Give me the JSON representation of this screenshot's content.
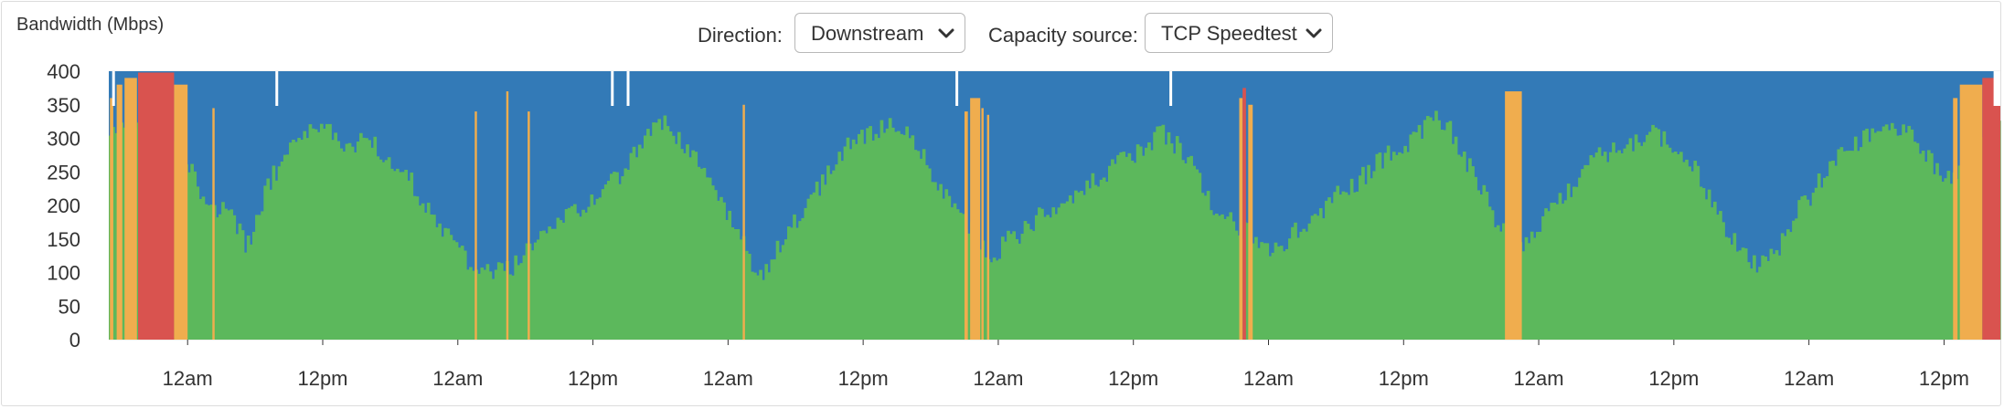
{
  "controls": {
    "direction_label": "Direction:",
    "direction_value": "Downstream",
    "capacity_label": "Capacity source:",
    "capacity_value": "TCP Speedtest"
  },
  "colors": {
    "capacity": "#337ab7",
    "usage_normal": "#5cb85c",
    "usage_warning": "#f0ad4e",
    "usage_danger": "#d9534f",
    "gap": "#ffffff"
  },
  "chart_data": {
    "type": "area",
    "ylabel": "Bandwidth (Mbps)",
    "ylim": [
      0,
      400
    ],
    "yticks": [
      0,
      50,
      100,
      150,
      200,
      250,
      300,
      350,
      400
    ],
    "x_tick_labels": [
      "12am",
      "12pm",
      "12am",
      "12pm",
      "12am",
      "12pm",
      "12am",
      "12pm",
      "12am",
      "12pm",
      "12am",
      "12pm",
      "12am",
      "12pm"
    ],
    "x_unit": "hours since start of plotted window",
    "x_range": [
      0,
      168
    ],
    "x_tick_hours": [
      7,
      19,
      31,
      43,
      55,
      67,
      79,
      91,
      103,
      115,
      127,
      139,
      151,
      163
    ],
    "grid": "horizontal and vertical",
    "series": [
      {
        "name": "capacity",
        "role": "TCP Speedtest capacity (blue band)",
        "value": 400,
        "gaps": [
          [
            0.3,
            0.5
          ],
          [
            14.8,
            15.0
          ],
          [
            44.6,
            44.8
          ],
          [
            46.0,
            46.2
          ],
          [
            75.2,
            75.4
          ],
          [
            94.2,
            94.4
          ],
          [
            167.4,
            168
          ]
        ]
      },
      {
        "name": "usage",
        "role": "downstream usage (bars, colored by utilisation)",
        "profile": [
          [
            0,
            320
          ],
          [
            1,
            310
          ],
          [
            2,
            330
          ],
          [
            3,
            320
          ],
          [
            4,
            310
          ],
          [
            5,
            300
          ],
          [
            6,
            290
          ],
          [
            7,
            260
          ],
          [
            8,
            215
          ],
          [
            9,
            200
          ],
          [
            10,
            190
          ],
          [
            11,
            175
          ],
          [
            12,
            140
          ],
          [
            13,
            170
          ],
          [
            14,
            230
          ],
          [
            15,
            260
          ],
          [
            16,
            280
          ],
          [
            17,
            300
          ],
          [
            18,
            310
          ],
          [
            19,
            320
          ],
          [
            20,
            300
          ],
          [
            21,
            290
          ],
          [
            22,
            290
          ],
          [
            23,
            300
          ],
          [
            24,
            280
          ],
          [
            25,
            260
          ],
          [
            26,
            250
          ],
          [
            27,
            230
          ],
          [
            28,
            200
          ],
          [
            29,
            170
          ],
          [
            30,
            150
          ],
          [
            31,
            130
          ],
          [
            32,
            115
          ],
          [
            33,
            110
          ],
          [
            34,
            100
          ],
          [
            35,
            100
          ],
          [
            36,
            110
          ],
          [
            37,
            130
          ],
          [
            38,
            150
          ],
          [
            39,
            160
          ],
          [
            40,
            175
          ],
          [
            41,
            185
          ],
          [
            42,
            195
          ],
          [
            43,
            210
          ],
          [
            44,
            225
          ],
          [
            45,
            240
          ],
          [
            46,
            260
          ],
          [
            47,
            290
          ],
          [
            48,
            315
          ],
          [
            49,
            325
          ],
          [
            50,
            310
          ],
          [
            51,
            290
          ],
          [
            52,
            270
          ],
          [
            53,
            240
          ],
          [
            54,
            210
          ],
          [
            55,
            180
          ],
          [
            56,
            150
          ],
          [
            57,
            110
          ],
          [
            58,
            95
          ],
          [
            59,
            130
          ],
          [
            60,
            160
          ],
          [
            61,
            180
          ],
          [
            62,
            200
          ],
          [
            63,
            230
          ],
          [
            64,
            260
          ],
          [
            65,
            280
          ],
          [
            66,
            295
          ],
          [
            67,
            300
          ],
          [
            68,
            310
          ],
          [
            69,
            320
          ],
          [
            70,
            315
          ],
          [
            71,
            300
          ],
          [
            72,
            280
          ],
          [
            73,
            250
          ],
          [
            74,
            220
          ],
          [
            75,
            200
          ],
          [
            76,
            175
          ],
          [
            77,
            150
          ],
          [
            78,
            130
          ],
          [
            79,
            135
          ],
          [
            80,
            150
          ],
          [
            81,
            160
          ],
          [
            82,
            175
          ],
          [
            83,
            190
          ],
          [
            84,
            200
          ],
          [
            85,
            210
          ],
          [
            86,
            220
          ],
          [
            87,
            230
          ],
          [
            88,
            240
          ],
          [
            89,
            255
          ],
          [
            90,
            270
          ],
          [
            91,
            275
          ],
          [
            92,
            285
          ],
          [
            93,
            310
          ],
          [
            94,
            300
          ],
          [
            95,
            285
          ],
          [
            96,
            260
          ],
          [
            97,
            230
          ],
          [
            98,
            200
          ],
          [
            99,
            180
          ],
          [
            100,
            170
          ],
          [
            101,
            160
          ],
          [
            102,
            150
          ],
          [
            103,
            135
          ],
          [
            104,
            140
          ],
          [
            105,
            155
          ],
          [
            106,
            170
          ],
          [
            107,
            185
          ],
          [
            108,
            200
          ],
          [
            109,
            215
          ],
          [
            110,
            225
          ],
          [
            111,
            240
          ],
          [
            112,
            255
          ],
          [
            113,
            270
          ],
          [
            114,
            280
          ],
          [
            115,
            290
          ],
          [
            116,
            310
          ],
          [
            117,
            320
          ],
          [
            118,
            330
          ],
          [
            119,
            310
          ],
          [
            120,
            280
          ],
          [
            121,
            250
          ],
          [
            122,
            215
          ],
          [
            123,
            180
          ],
          [
            124,
            160
          ],
          [
            125,
            145
          ],
          [
            126,
            150
          ],
          [
            127,
            170
          ],
          [
            128,
            190
          ],
          [
            129,
            210
          ],
          [
            130,
            230
          ],
          [
            131,
            250
          ],
          [
            132,
            270
          ],
          [
            133,
            280
          ],
          [
            134,
            280
          ],
          [
            135,
            290
          ],
          [
            136,
            300
          ],
          [
            137,
            310
          ],
          [
            138,
            300
          ],
          [
            139,
            290
          ],
          [
            140,
            270
          ],
          [
            141,
            250
          ],
          [
            142,
            215
          ],
          [
            143,
            180
          ],
          [
            144,
            155
          ],
          [
            145,
            130
          ],
          [
            146,
            115
          ],
          [
            147,
            110
          ],
          [
            148,
            130
          ],
          [
            149,
            165
          ],
          [
            150,
            195
          ],
          [
            151,
            215
          ],
          [
            152,
            240
          ],
          [
            153,
            260
          ],
          [
            154,
            280
          ],
          [
            155,
            290
          ],
          [
            156,
            300
          ],
          [
            157,
            310
          ],
          [
            158,
            320
          ],
          [
            159,
            310
          ],
          [
            160,
            300
          ],
          [
            161,
            280
          ],
          [
            162,
            260
          ],
          [
            163,
            240
          ],
          [
            164,
            250
          ],
          [
            165,
            270
          ],
          [
            166,
            300
          ],
          [
            167,
            320
          ],
          [
            168,
            320
          ]
        ],
        "spikes": [
          [
            0.1,
            0.4,
            360,
            "warning"
          ],
          [
            0.7,
            1.2,
            380,
            "warning"
          ],
          [
            1.4,
            2.5,
            390,
            "warning"
          ],
          [
            2.6,
            5.8,
            398,
            "danger"
          ],
          [
            5.8,
            7.0,
            380,
            "warning"
          ],
          [
            9.2,
            9.4,
            345,
            "warning"
          ],
          [
            32.5,
            32.7,
            340,
            "warning"
          ],
          [
            35.3,
            35.5,
            370,
            "warning"
          ],
          [
            37.2,
            37.4,
            340,
            "warning"
          ],
          [
            56.3,
            56.5,
            350,
            "warning"
          ],
          [
            76.0,
            76.3,
            340,
            "warning"
          ],
          [
            76.5,
            77.4,
            360,
            "warning"
          ],
          [
            77.5,
            77.7,
            345,
            "warning"
          ],
          [
            78.0,
            78.2,
            335,
            "warning"
          ],
          [
            100.4,
            100.7,
            360,
            "warning"
          ],
          [
            100.7,
            101.0,
            375,
            "danger"
          ],
          [
            101.2,
            101.6,
            350,
            "warning"
          ],
          [
            124.0,
            125.5,
            370,
            "warning"
          ],
          [
            163.8,
            164.2,
            360,
            "warning"
          ],
          [
            164.4,
            166.4,
            380,
            "warning"
          ],
          [
            166.4,
            168.0,
            390,
            "danger"
          ]
        ]
      }
    ]
  }
}
